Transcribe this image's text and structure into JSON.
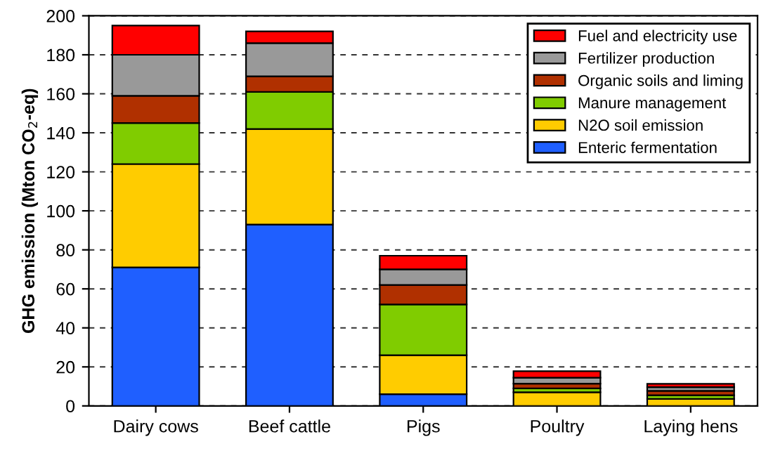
{
  "chart_data": {
    "type": "bar",
    "stacked": true,
    "ylabel": "GHG emission (Mton CO$_{2}$-eq)",
    "categories": [
      "Dairy cows",
      "Beef cattle",
      "Pigs",
      "Poultry",
      "Laying hens"
    ],
    "series": [
      {
        "name": "Enteric fermentation",
        "color": "#1f5fff",
        "values": [
          71,
          93,
          6,
          0,
          0
        ]
      },
      {
        "name": "N2O soil emission",
        "color": "#ffcc00",
        "values": [
          53,
          49,
          20,
          7,
          3.6
        ]
      },
      {
        "name": "Manure management",
        "color": "#80cc00",
        "values": [
          21,
          19,
          26,
          2,
          1.9
        ]
      },
      {
        "name": "Organic soils and liming",
        "color": "#b03000",
        "values": [
          14,
          8,
          10,
          2.4,
          2.2
        ]
      },
      {
        "name": "Fertilizer production",
        "color": "#999999",
        "values": [
          21,
          17,
          8,
          3.1,
          1.9
        ]
      },
      {
        "name": "Fuel and electricity use",
        "color": "#ff0000",
        "values": [
          15,
          6,
          7,
          3.3,
          1.7
        ]
      }
    ],
    "ylim": [
      0,
      200
    ],
    "yticks": [
      0,
      20,
      40,
      60,
      80,
      100,
      120,
      140,
      160,
      180,
      200
    ],
    "grid": "y",
    "legend": "top right"
  }
}
